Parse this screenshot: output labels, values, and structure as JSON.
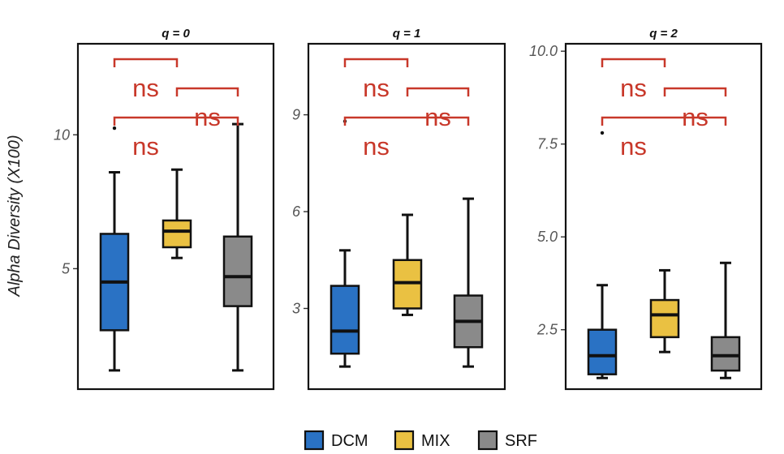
{
  "chart_data": {
    "type": "box",
    "ylabel": "Alpha Diversity (X100)",
    "groups": [
      "DCM",
      "MIX",
      "SRF"
    ],
    "colors": {
      "DCM": "#2a72c4",
      "MIX": "#eac142",
      "SRF": "#8a8a8a",
      "significance": "#c8382a"
    },
    "legend": {
      "position": "bottom",
      "entries": [
        "DCM",
        "MIX",
        "SRF"
      ]
    },
    "grid": false,
    "panels": [
      {
        "title": "q = 0",
        "ylim": [
          0.5,
          13.4
        ],
        "yticks": [
          5,
          10
        ],
        "ytick_labels": [
          "5",
          "10"
        ],
        "boxes": [
          {
            "group": "DCM",
            "whisker_low": 1.2,
            "q1": 2.7,
            "median": 4.5,
            "q3": 6.3,
            "whisker_high": 8.6,
            "outliers": [
              10.25
            ]
          },
          {
            "group": "MIX",
            "whisker_low": 5.4,
            "q1": 5.8,
            "median": 6.4,
            "q3": 6.8,
            "whisker_high": 8.7,
            "outliers": []
          },
          {
            "group": "SRF",
            "whisker_low": 1.2,
            "q1": 3.6,
            "median": 4.7,
            "q3": 6.2,
            "whisker_high": 10.4,
            "outliers": []
          }
        ],
        "comparisons": [
          {
            "groups": [
              "DCM",
              "MIX"
            ],
            "label": "ns"
          },
          {
            "groups": [
              "MIX",
              "SRF"
            ],
            "label": "ns"
          },
          {
            "groups": [
              "DCM",
              "SRF"
            ],
            "label": "ns"
          }
        ]
      },
      {
        "title": "q = 1",
        "ylim": [
          0.5,
          11.2
        ],
        "yticks": [
          3,
          6,
          9
        ],
        "ytick_labels": [
          "3",
          "6",
          "9"
        ],
        "boxes": [
          {
            "group": "DCM",
            "whisker_low": 1.2,
            "q1": 1.6,
            "median": 2.3,
            "q3": 3.7,
            "whisker_high": 4.8,
            "outliers": [
              8.8
            ]
          },
          {
            "group": "MIX",
            "whisker_low": 2.8,
            "q1": 3.0,
            "median": 3.8,
            "q3": 4.5,
            "whisker_high": 5.9,
            "outliers": []
          },
          {
            "group": "SRF",
            "whisker_low": 1.2,
            "q1": 1.8,
            "median": 2.6,
            "q3": 3.4,
            "whisker_high": 6.4,
            "outliers": []
          }
        ],
        "comparisons": [
          {
            "groups": [
              "DCM",
              "MIX"
            ],
            "label": "ns"
          },
          {
            "groups": [
              "MIX",
              "SRF"
            ],
            "label": "ns"
          },
          {
            "groups": [
              "DCM",
              "SRF"
            ],
            "label": "ns"
          }
        ]
      },
      {
        "title": "q = 2",
        "ylim": [
          0.9,
          10.2
        ],
        "yticks": [
          2.5,
          5.0,
          7.5,
          10.0
        ],
        "ytick_labels": [
          "2.5",
          "5.0",
          "7.5",
          "10.0"
        ],
        "boxes": [
          {
            "group": "DCM",
            "whisker_low": 1.2,
            "q1": 1.3,
            "median": 1.8,
            "q3": 2.5,
            "whisker_high": 3.7,
            "outliers": [
              7.8
            ]
          },
          {
            "group": "MIX",
            "whisker_low": 1.9,
            "q1": 2.3,
            "median": 2.9,
            "q3": 3.3,
            "whisker_high": 4.1,
            "outliers": []
          },
          {
            "group": "SRF",
            "whisker_low": 1.2,
            "q1": 1.4,
            "median": 1.8,
            "q3": 2.3,
            "whisker_high": 4.3,
            "outliers": []
          }
        ],
        "comparisons": [
          {
            "groups": [
              "DCM",
              "MIX"
            ],
            "label": "ns"
          },
          {
            "groups": [
              "MIX",
              "SRF"
            ],
            "label": "ns"
          },
          {
            "groups": [
              "DCM",
              "SRF"
            ],
            "label": "ns"
          }
        ]
      }
    ]
  }
}
